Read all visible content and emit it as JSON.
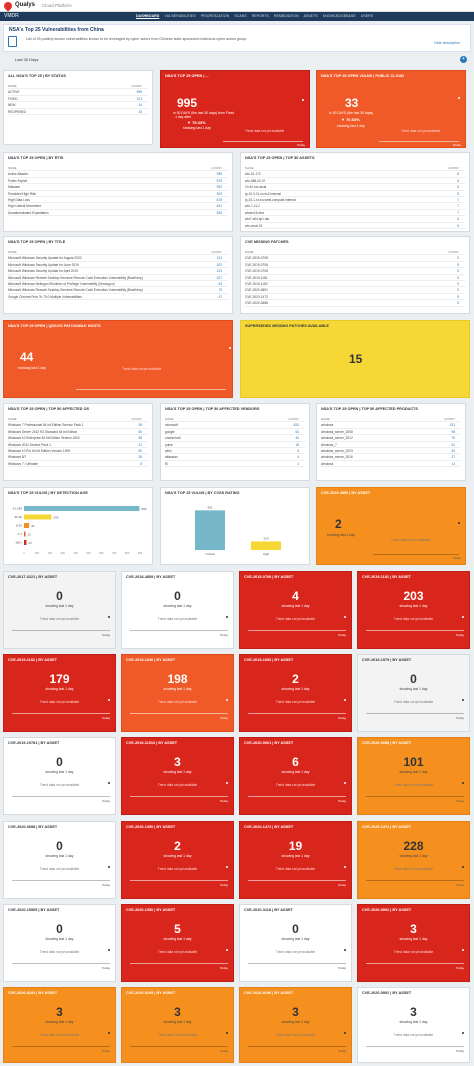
{
  "app": {
    "brand": "Qualys",
    "sub": "Cloud Platform",
    "module": "VMDR"
  },
  "nav": [
    "DASHBOARD",
    "VULNERABILITIES",
    "PRIORITIZATION",
    "SCANS",
    "REPORTS",
    "REMEDIATION",
    "ASSETS",
    "KNOWLEDGEBASE",
    "USERS"
  ],
  "header": {
    "title": "NSA's Top 25 Vulnerabilities from China",
    "desc": "List of 25 publicly known vulnerabilities known to be leveraged by cyber actors from Chinese state-sponsored malicious cyber actors group.",
    "more": "Hide description"
  },
  "filter": {
    "range": "Last 30 Days"
  },
  "common": {
    "showing": "showing last 1 day",
    "notrend": "Trend data not yet available",
    "today": "Today"
  },
  "status": {
    "title": "ALL NSA'S TOP 25 | BY STATUS",
    "col1": "NAME",
    "col2": "COUNT",
    "rows": [
      [
        "ACTIVE",
        "995"
      ],
      [
        "FIXED",
        "101"
      ],
      [
        "NEW",
        "14"
      ],
      [
        "REOPENED",
        "15"
      ]
    ]
  },
  "kpi1": {
    "title": "NSA'S TOP 25 OPEN | ...",
    "value": "995",
    "desc1": "in 30 DAYS (the last 30 days) from Fixed",
    "desc2": "- 1 day after",
    "pct": "▼ 79.33%",
    "showing": "showing last 1 day"
  },
  "kpi2": {
    "title": "NSA'S TOP 25 OPEN VULNS | PUBLIC CLOUD",
    "value": "33",
    "desc1": "in 30 DAYS (the last 30 days)",
    "pct": "▼ 70.53%",
    "showing": "showing last 1 day"
  },
  "rtis": {
    "title": "NSA'S TOP 25 OPEN | BY RTIS",
    "col1": "NAME",
    "col2": "COUNT",
    "rows": [
      [
        "Active Attacks",
        "995"
      ],
      [
        "Public Exploit",
        "979"
      ],
      [
        "Malware",
        "952"
      ],
      [
        "Predicted High Risk",
        "903"
      ],
      [
        "High Data Loss",
        "878"
      ],
      [
        "High Lateral Movement",
        "641"
      ],
      [
        "Unauthenticated Exploitation",
        "526"
      ]
    ]
  },
  "assets": {
    "title": "NSA'S TOP 25 OPEN | TOP 50 ASSETS",
    "col1": "NAME",
    "col2": "COUNT",
    "rows": [
      [
        "win-01-172",
        "8"
      ],
      [
        "win-088-02-07",
        "8"
      ],
      [
        "10.40.xxx-local",
        "8"
      ],
      [
        "ip-10-0-11-xx.ec2.internal",
        "8"
      ],
      [
        "ip-10-1-xx.eu-west.compute.internal",
        "7"
      ],
      [
        "win-7-11-2",
        "7"
      ],
      [
        "winsrv16-test",
        "7"
      ],
      [
        "win7-x64-sp1-lab",
        "6"
      ],
      [
        "win-vmdr-01",
        "6"
      ]
    ]
  },
  "title25": {
    "title": "NSA'S TOP 25 OPEN | BY TITLE",
    "col1": "NAME",
    "col2": "COUNT",
    "rows": [
      [
        "Microsoft Windows Security Update for August 2020",
        "313"
      ],
      [
        "Microsoft Windows Security Update for June 2019",
        "202"
      ],
      [
        "Microsoft Windows Security Update for April 2019",
        "223"
      ],
      [
        "Microsoft Windows Remote Desktop Services Remote Code Execution Vulnerability (BlueKeep)",
        "207"
      ],
      [
        "Microsoft Windows Netlogon Elevation of Privilege Vulnerability (Zerologon)",
        "63"
      ],
      [
        "Microsoft Windows Remote Desktop Services Remote Code Execution Vulnerability (BlueKeep)",
        "79"
      ],
      [
        "Google Chrome Prior To 79.0 Multiple Vulnerabilities",
        "47"
      ]
    ]
  },
  "missing": {
    "title": "CVE MISSING PATCHES",
    "col1": "NAME",
    "col2": "COUNT",
    "rows": [
      [
        "CVE-2019-0708",
        "5"
      ],
      [
        "CVE-2019-0708",
        "5"
      ],
      [
        "CVE-2019-0708",
        "5"
      ],
      [
        "CVE-2019-1181",
        "5"
      ],
      [
        "CVE-2019-1182",
        "5"
      ],
      [
        "CVE-2020-0601",
        "5"
      ],
      [
        "CVE-2020-1472",
        "5"
      ],
      [
        "CVE-2020-0688",
        "5"
      ]
    ]
  },
  "qds": {
    "title": "NSA'S TOP 25 OPEN | QDS/VS PATCHABLE HOSTS",
    "value": "44",
    "showing": "showing last 1 day"
  },
  "superseded": {
    "title": "SUPERSEDED MISSING PATCHES AVAILABLE",
    "value": "15"
  },
  "os": {
    "title": "NSA'S TOP 25 OPEN | TOP 50 AFFECTED OS",
    "col1": "NAME",
    "col2": "COUNT",
    "rows": [
      [
        "Windows 7 Professional 64 bit Edition Service Pack 1",
        "36"
      ],
      [
        "Windows Server 2012 R2 Standard 64 bit Edition",
        "60"
      ],
      [
        "Windows 10 Enterprise 64 bit Edition Version 1803",
        "58"
      ],
      [
        "Windows 2012 Service Pack 1",
        "31"
      ],
      [
        "Windows 10 Pro 64 bit Edition Version 1909",
        "50"
      ],
      [
        "Windows 8/7",
        "36"
      ],
      [
        "Windows 7 / Ultimate",
        "8"
      ]
    ]
  },
  "vendors": {
    "title": "NSA'S TOP 25 OPEN | TOP 50 AFFECTED VENDORS",
    "col1": "NAME",
    "col2": "COUNT",
    "rows": [
      [
        "microsoft",
        "820"
      ],
      [
        "google",
        "64"
      ],
      [
        "oracle/mail",
        "40"
      ],
      [
        "pulse",
        "18"
      ],
      [
        "citrix",
        "8"
      ],
      [
        "atlassian",
        "4"
      ],
      [
        "f5",
        "1"
      ]
    ]
  },
  "products": {
    "title": "NSA'S TOP 25 OPEN | TOP 50 AFFECTED PRODUCTS",
    "col1": "NAME",
    "col2": "COUNT",
    "rows": [
      [
        "windows",
        "321"
      ],
      [
        "windows_server_2008",
        "98"
      ],
      [
        "windows_server_2012",
        "76"
      ],
      [
        "windows_7",
        "61"
      ],
      [
        "windows_server_2003",
        "54"
      ],
      [
        "windows_server_2016",
        "27"
      ],
      [
        "windows",
        "14"
      ]
    ]
  },
  "agebar": {
    "title": "NSA'S TOP 25 VULNS | BY DETECTION AGE",
    "categories": [
      "91-180",
      "31-90",
      "8-30",
      "0-7",
      "180+"
    ],
    "values": [
      995,
      236,
      44,
      13,
      21
    ],
    "colors": [
      "#76b7c9",
      "#f5d836",
      "#f5901e",
      "#f05a28",
      "#d9261c"
    ],
    "xticks": [
      "0",
      "100",
      "200",
      "300",
      "400",
      "500",
      "600",
      "700",
      "800",
      "900"
    ]
  },
  "cvss": {
    "title": "NSA'S TOP 25 VULNS | BY CVSS RATING",
    "categories": [
      "Critical",
      "High"
    ],
    "values": [
      991,
      215
    ],
    "colors": [
      "#76b7c9",
      "#f5d836"
    ]
  },
  "cve1": {
    "title": "CVE-2019-4850 | BY ASSET",
    "value": "2"
  },
  "grid": [
    {
      "title": "CVE-2017-0221 | BY ASSET",
      "value": "0",
      "c": "gray"
    },
    {
      "title": "CVE-2018-4859 | BY ASSET",
      "value": "0",
      "c": "white"
    },
    {
      "title": "CVE-2019-0708 | BY ASSET",
      "value": "4",
      "c": "red"
    },
    {
      "title": "CVE-2019-1181 | BY ASSET",
      "value": "203",
      "c": "red"
    },
    {
      "title": "CVE-2019-1182 | BY ASSET",
      "value": "179",
      "c": "red"
    },
    {
      "title": "CVE-2019-1040 | BY ASSET",
      "value": "198",
      "c": "ored"
    },
    {
      "title": "CVE-2019-1653 | BY ASSET",
      "value": "2",
      "c": "red"
    },
    {
      "title": "CVE-2019-1579 | BY ASSET",
      "value": "0",
      "c": "gray"
    },
    {
      "title": "CVE-2019-19781 | BY ASSET",
      "value": "0",
      "c": "white"
    },
    {
      "title": "CVE-2019-11510 | BY ASSET",
      "value": "3",
      "c": "red"
    },
    {
      "title": "CVE-2020-0601 | BY ASSET",
      "value": "6",
      "c": "red"
    },
    {
      "title": "CVE-2020-0688 | BY ASSET",
      "value": "101",
      "c": "orange"
    },
    {
      "title": "CVE-2020-0688 | BY ASSET",
      "value": "0",
      "c": "white"
    },
    {
      "title": "CVE-2020-1350 | BY ASSET",
      "value": "2",
      "c": "red"
    },
    {
      "title": "CVE-2020-1472 | BY ASSET",
      "value": "19",
      "c": "red"
    },
    {
      "title": "CVE-2020-1472 | BY ASSET",
      "value": "228",
      "c": "orange"
    },
    {
      "title": "CVE-2020-15505 | BY ASSET",
      "value": "0",
      "c": "white"
    },
    {
      "title": "CVE-2020-1350 | BY ASSET",
      "value": "5",
      "c": "red"
    },
    {
      "title": "CVE-2020-3118 | BY ASSET",
      "value": "0",
      "c": "white"
    },
    {
      "title": "CVE-2020-5902 | BY ASSET",
      "value": "3",
      "c": "red"
    },
    {
      "title": "CVE-2020-8193 | BY ASSET",
      "value": "3",
      "c": "orange"
    },
    {
      "title": "CVE-2020-8195 | BY ASSET",
      "value": "3",
      "c": "orange"
    },
    {
      "title": "CVE-2020-8196 | BY ASSET",
      "value": "3",
      "c": "orange"
    },
    {
      "title": "CVE-2020-5902 | BY ASSET",
      "value": "3",
      "c": "white"
    }
  ]
}
